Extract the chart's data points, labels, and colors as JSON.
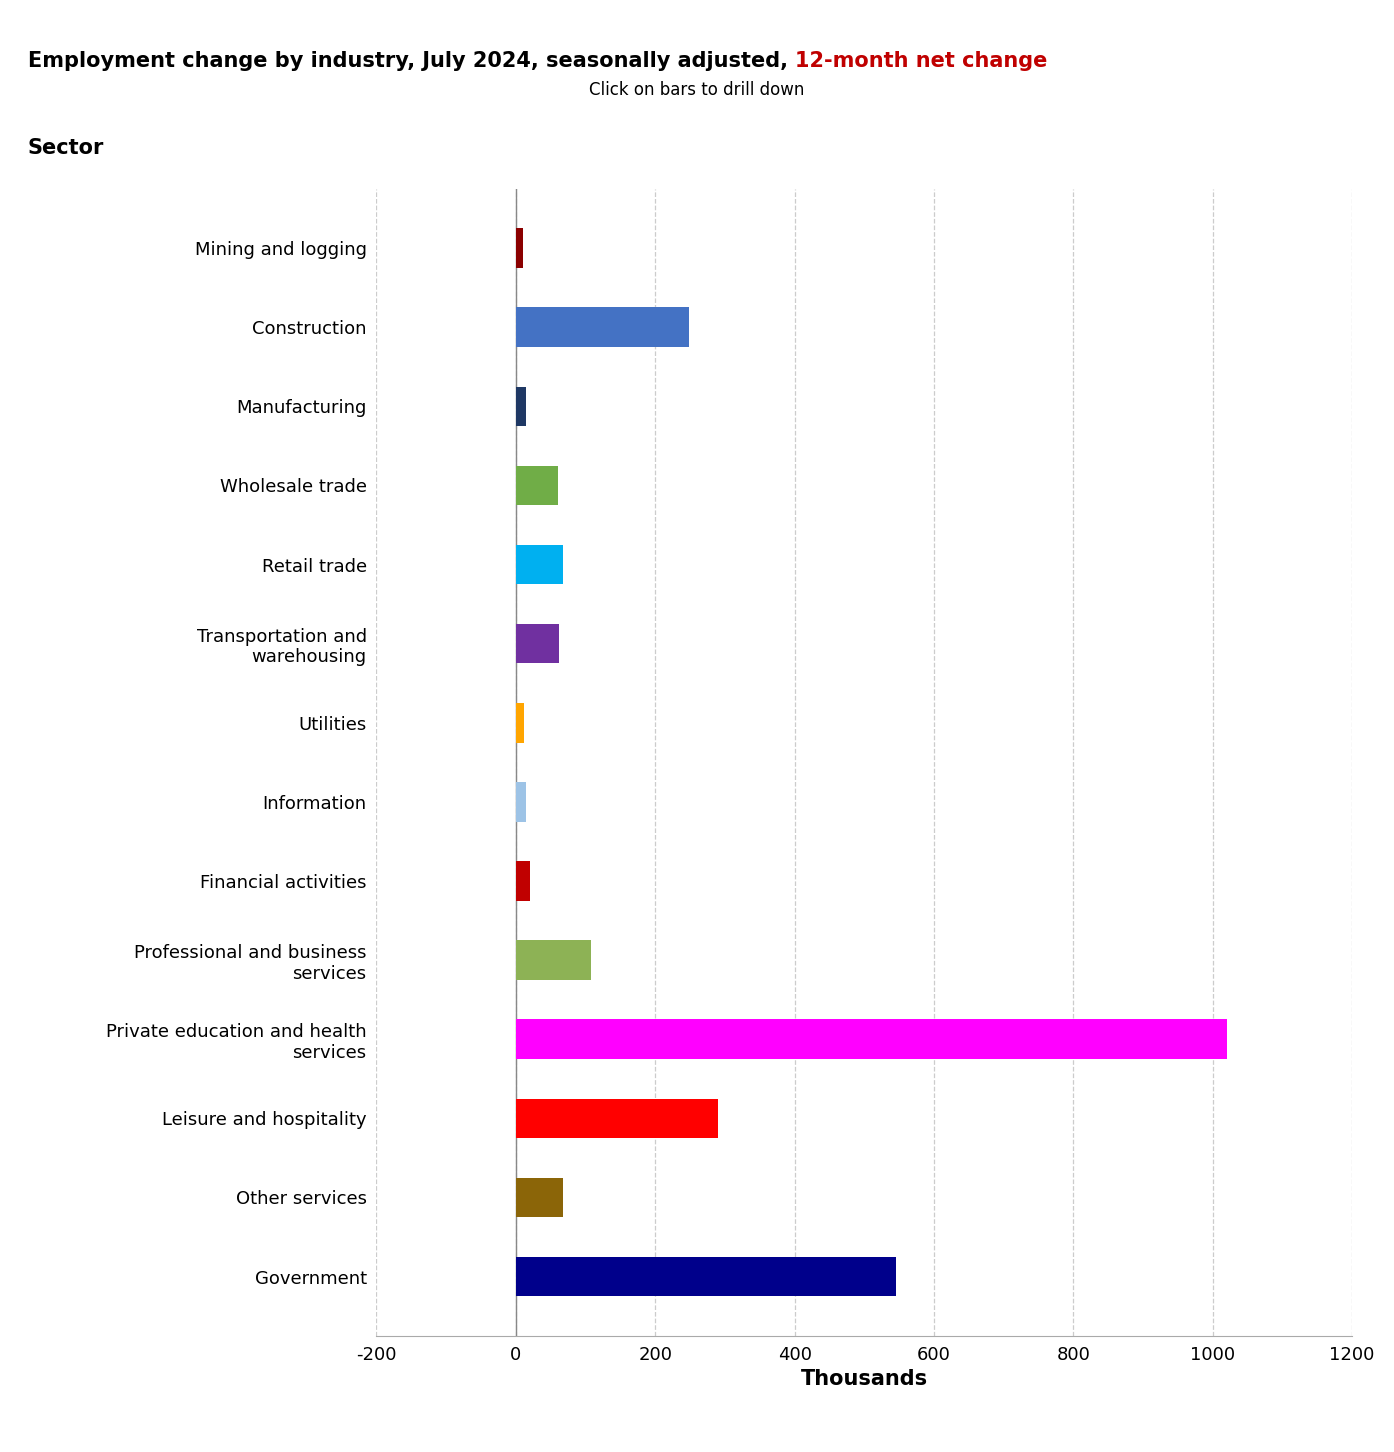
{
  "title_black": "Employment change by industry, July 2024, seasonally adjusted, ",
  "title_red": "12-month net change",
  "subtitle": "Click on bars to drill down",
  "xlabel": "Thousands",
  "categories": [
    "Mining and logging",
    "Construction",
    "Manufacturing",
    "Wholesale trade",
    "Retail trade",
    "Transportation and\nwarehousing",
    "Utilities",
    "Information",
    "Financial activities",
    "Professional and business\nservices",
    "Private education and health\nservices",
    "Leisure and hospitality",
    "Other services",
    "Government"
  ],
  "values": [
    10,
    248,
    15,
    60,
    68,
    62,
    12,
    15,
    20,
    108,
    1020,
    290,
    68,
    545
  ],
  "colors": [
    "#8B0000",
    "#4472C4",
    "#1F3864",
    "#70AD47",
    "#00B0F0",
    "#7030A0",
    "#FFA500",
    "#9DC3E6",
    "#C00000",
    "#8DB255",
    "#FF00FF",
    "#FF0000",
    "#8B6508",
    "#00008B"
  ],
  "xlim": [
    -200,
    1200
  ],
  "xticks": [
    -200,
    0,
    200,
    400,
    600,
    800,
    1000,
    1200
  ],
  "gridline_color": "#CCCCCC",
  "bar_height": 0.5,
  "title_fontsize": 15,
  "subtitle_fontsize": 12,
  "axis_label_fontsize": 15,
  "tick_fontsize": 13,
  "sector_label_fontsize": 15
}
